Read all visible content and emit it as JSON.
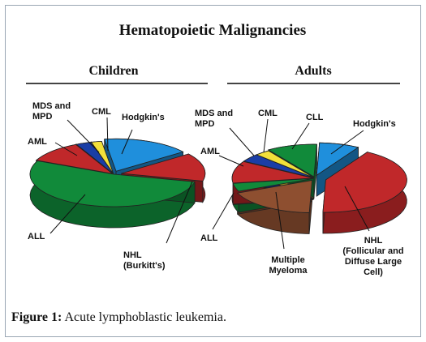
{
  "figure": {
    "caption_label": "Figure 1:",
    "caption_text": " Acute lymphoblastic leukemia."
  },
  "chart_data": [
    {
      "type": "pie",
      "title": "Hematopoietic Malignancies",
      "subtitle": "Children",
      "units": "approximate share, %",
      "slices": [
        {
          "label": "Hodgkin's",
          "value": 17,
          "color": "#1f8fdc"
        },
        {
          "label": "NHL\n(Burkitt's)",
          "value": 14,
          "color": "#c0282a"
        },
        {
          "label": "ALL",
          "value": 53,
          "color": "#118a3a"
        },
        {
          "label": "AML",
          "value": 11,
          "color": "#c0282a"
        },
        {
          "label": "MDS and\nMPD",
          "value": 3,
          "color": "#1a3ea6"
        },
        {
          "label": "CML",
          "value": 2,
          "color": "#f2e03a"
        }
      ]
    },
    {
      "type": "pie",
      "title": "Hematopoietic Malignancies",
      "subtitle": "Adults",
      "units": "approximate share, %",
      "slices": [
        {
          "label": "Hodgkin's",
          "value": 8,
          "color": "#1f8fdc"
        },
        {
          "label": "NHL\n(Follicular and\nDiffuse Large\nCell)",
          "value": 42,
          "color": "#c0282a"
        },
        {
          "label": "Multiple\nMyeloma",
          "value": 18,
          "color": "#8e4f30"
        },
        {
          "label": "ALL",
          "value": 4,
          "color": "#118a3a"
        },
        {
          "label": "AML",
          "value": 11,
          "color": "#c0282a"
        },
        {
          "label": "MDS and\nMPD",
          "value": 4,
          "color": "#1a3ea6"
        },
        {
          "label": "CML",
          "value": 3,
          "color": "#f2e03a"
        },
        {
          "label": "CLL",
          "value": 10,
          "color": "#118a3a"
        }
      ]
    }
  ]
}
